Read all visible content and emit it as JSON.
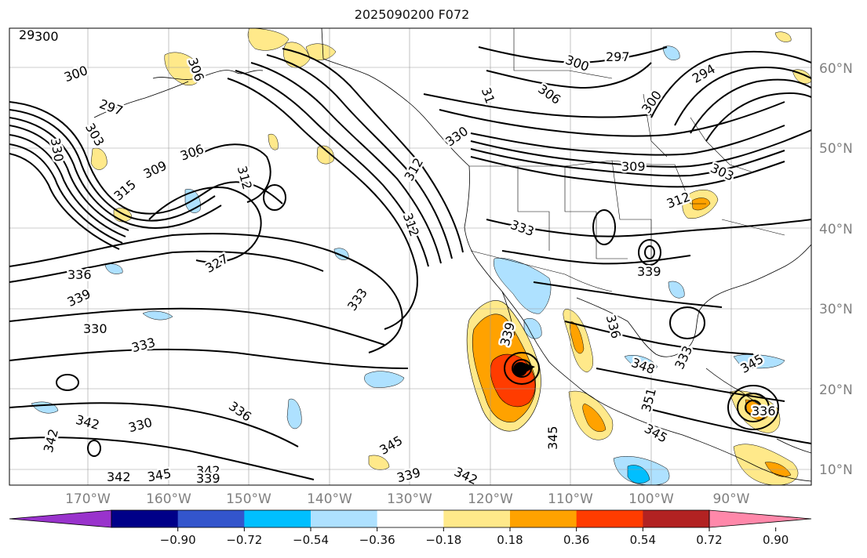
{
  "title": "2025090200 F072",
  "colors": {
    "contour": "#000000",
    "grid": "#9a9a9a",
    "tick_label": "#808080",
    "light_yellow": "#ffe98a",
    "orange": "#ffa200",
    "red_orange": "#ff3c00",
    "light_blue": "#aee1ff",
    "deep_sky_blue": "#00bfff"
  },
  "axes": {
    "lat_labels": [
      "60°N",
      "50°N",
      "40°N",
      "30°N",
      "20°N",
      "10°N"
    ],
    "lon_labels": [
      "170°W",
      "160°W",
      "150°W",
      "140°W",
      "130°W",
      "120°W",
      "110°W",
      "100°W",
      "90°W"
    ]
  },
  "colorbar": {
    "colors": [
      "#9933cc",
      "#000088",
      "#3355cc",
      "#00bfff",
      "#aee1ff",
      "#ffffff",
      "#ffe98a",
      "#ffa200",
      "#ff3c00",
      "#b22222",
      "#ff88aa"
    ],
    "labels": [
      "−0.90",
      "−0.72",
      "−0.54",
      "−0.36",
      "−0.18",
      "0.18",
      "0.36",
      "0.54",
      "0.72",
      "0.90"
    ]
  },
  "contour_labels": {
    "l_297_ne": "297",
    "l_300_ne": "300",
    "l_306_ne": "306",
    "l_300_e": "300",
    "l_294": "294",
    "l_300_nw": "300",
    "l_297_w": "297",
    "l_303_w": "303",
    "l_330_w": "330",
    "l_306_w": "306",
    "l_309_w": "309",
    "l_315_w": "315",
    "l_312_c": "312",
    "l_330_ak": "330",
    "l_312_ak": "312",
    "l_312_coast": "312",
    "l_309_us": "309",
    "l_303_us": "303",
    "l_333_sw": "333",
    "l_339_us": "339",
    "l_327": "327",
    "l_336_w": "336",
    "l_339_w": "339",
    "l_330_sw": "330",
    "l_333_s": "333",
    "l_333_c": "333",
    "l_339_baja": "339",
    "l_345_s": "345",
    "l_342_sw": "342",
    "l_330_ssw": "330",
    "l_336_s": "336",
    "l_342_s": "342",
    "l_345_bot": "345",
    "l_339_bot": "339",
    "l_342_bot2": "342",
    "l_339_bot2": "339",
    "l_342_far": "342",
    "l_348": "348",
    "l_351": "351",
    "l_345_gulf": "345",
    "l_333_gulf": "333",
    "l_345_carib": "345",
    "l_336_mx": "336",
    "l_31_ne": "31",
    "l_29_nw": "29",
    "l_300_nw2": "300",
    "l_306_mid": "306",
    "l_312_ne": "312"
  }
}
